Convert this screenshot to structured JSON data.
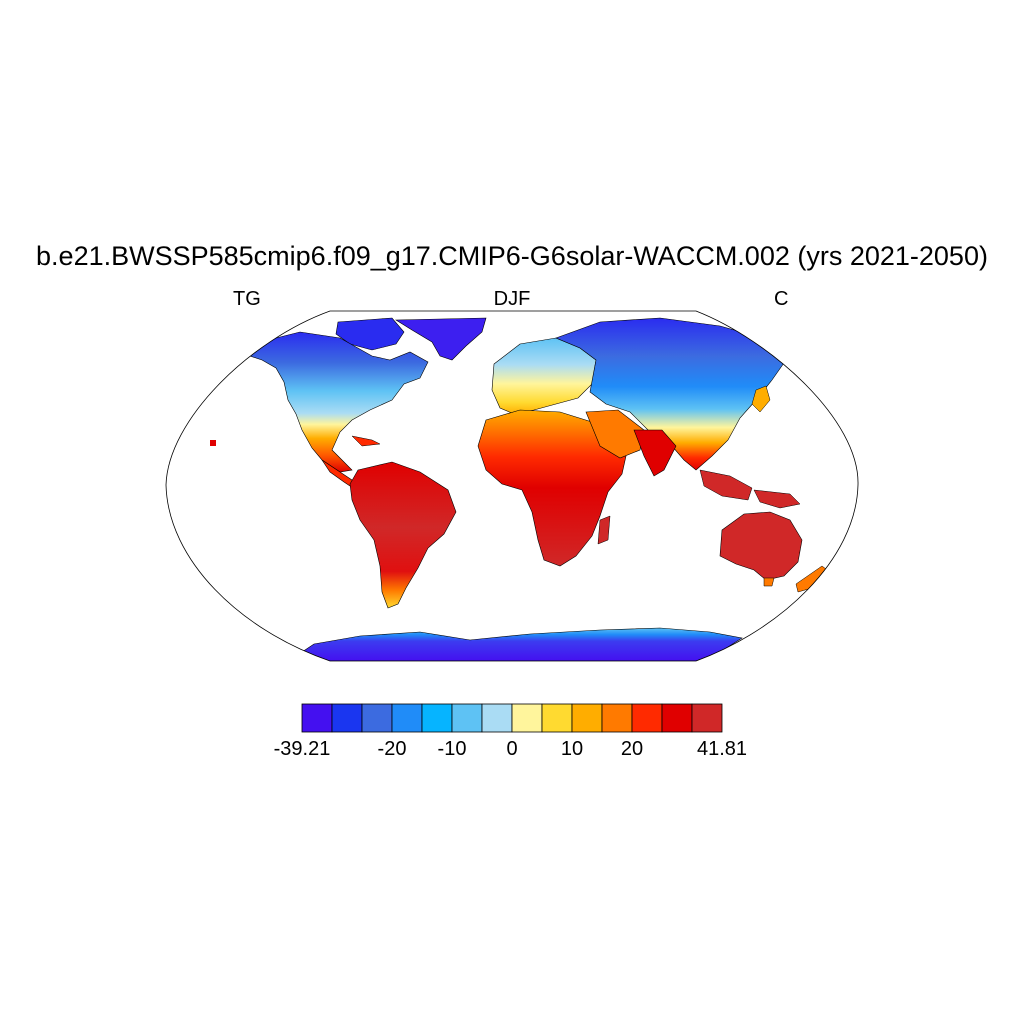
{
  "title": "b.e21.BWSSP585cmip6.f09_g17.CMIP6-G6solar-WACCM.002 (yrs 2021-2050)",
  "subtitle_left": "TG",
  "subtitle_center": "DJF",
  "subtitle_right": "C",
  "map": {
    "projection": "Robinson",
    "field": "near-surface temperature over land"
  },
  "colorbar": {
    "colors": [
      "#4410f0",
      "#1a36f0",
      "#3c6be0",
      "#208cf8",
      "#06b4ff",
      "#5ec2f4",
      "#aadcf4",
      "#fff59c",
      "#ffda30",
      "#ffad00",
      "#ff7a00",
      "#ff2a00",
      "#e00000",
      "#d02828"
    ],
    "labels": [
      {
        "text": "-39.21",
        "index": 0
      },
      {
        "text": "-20",
        "index": 3
      },
      {
        "text": "-10",
        "index": 5
      },
      {
        "text": "0",
        "index": 7
      },
      {
        "text": "10",
        "index": 9
      },
      {
        "text": "20",
        "index": 11
      },
      {
        "text": "41.81",
        "index": 14
      }
    ]
  }
}
